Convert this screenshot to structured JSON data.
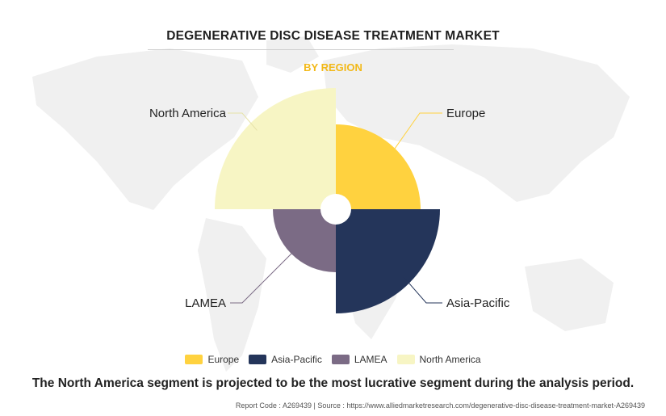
{
  "header": {
    "title": "DEGENERATIVE DISC DISEASE TREATMENT MARKET",
    "subtitle": "BY REGION"
  },
  "chart_data": {
    "type": "pie",
    "subtype": "polar-area (quadrant radii vary)",
    "title": "DEGENERATIVE DISC DISEASE TREATMENT MARKET",
    "subtitle": "BY REGION",
    "categories": [
      "Europe",
      "Asia-Pacific",
      "LAMEA",
      "North America"
    ],
    "relative_radii": [
      0.7,
      0.86,
      0.52,
      1.0
    ],
    "colors": [
      "#FFD23F",
      "#24355A",
      "#7B6B85",
      "#F7F5C4"
    ],
    "legend_position": "bottom",
    "grid": false
  },
  "legend": {
    "items": [
      {
        "label": "Europe",
        "color": "#FFD23F"
      },
      {
        "label": "Asia-Pacific",
        "color": "#24355A"
      },
      {
        "label": "LAMEA",
        "color": "#7B6B85"
      },
      {
        "label": "North America",
        "color": "#F7F5C4"
      }
    ]
  },
  "footer": {
    "statement": "The North America segment is projected to be the most lucrative segment during the analysis period.",
    "report": "Report Code : A269439  |  Source : https://www.alliedmarketresearch.com/degenerative-disc-disease-treatment-market-A269439"
  }
}
